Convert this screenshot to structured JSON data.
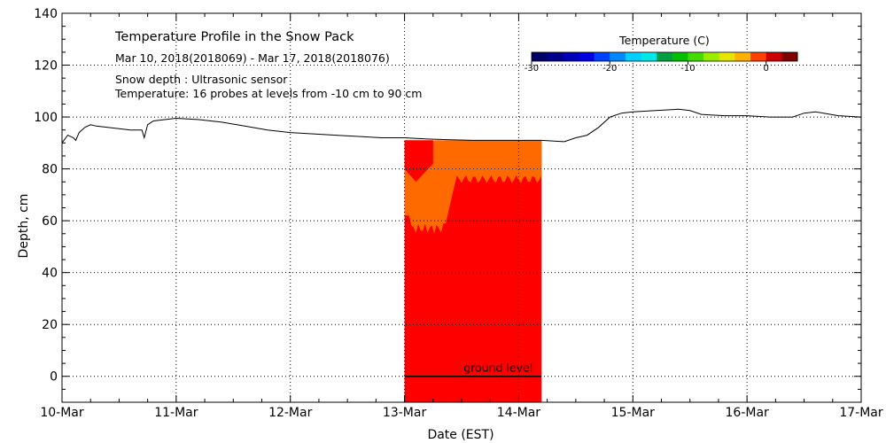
{
  "chart_data": {
    "type": "area",
    "title": "Temperature Profile in the Snow Pack",
    "subtitle": "Mar 10, 2018(2018069) - Mar 17, 2018(2018076)",
    "notes": [
      "Snow depth : Ultrasonic sensor",
      "Temperature: 16 probes at levels from -10 cm to 90 cm"
    ],
    "xlabel": "Date (EST)",
    "ylabel": "Depth, cm",
    "xlim": [
      0,
      7
    ],
    "ylim": [
      -10,
      140
    ],
    "x_ticks": [
      {
        "v": 0,
        "label": "10-Mar"
      },
      {
        "v": 1,
        "label": "11-Mar"
      },
      {
        "v": 2,
        "label": "12-Mar"
      },
      {
        "v": 3,
        "label": "13-Mar"
      },
      {
        "v": 4,
        "label": "14-Mar"
      },
      {
        "v": 5,
        "label": "15-Mar"
      },
      {
        "v": 6,
        "label": "16-Mar"
      },
      {
        "v": 7,
        "label": "17-Mar"
      }
    ],
    "y_ticks": [
      0,
      20,
      40,
      60,
      80,
      100,
      120,
      140
    ],
    "grid": true,
    "snow_depth_series": {
      "x": [
        0,
        0.05,
        0.1,
        0.12,
        0.15,
        0.2,
        0.25,
        0.3,
        0.4,
        0.5,
        0.6,
        0.7,
        0.72,
        0.75,
        0.8,
        0.9,
        1.0,
        1.2,
        1.4,
        1.6,
        1.8,
        2.0,
        2.2,
        2.4,
        2.6,
        2.8,
        3.0,
        3.2,
        3.4,
        3.6,
        3.8,
        4.0,
        4.2,
        4.4,
        4.5,
        4.6,
        4.7,
        4.8,
        4.9,
        5.0,
        5.2,
        5.4,
        5.5,
        5.6,
        5.8,
        6.0,
        6.2,
        6.4,
        6.5,
        6.6,
        6.8,
        7.0
      ],
      "y": [
        90,
        93,
        92,
        91,
        94,
        96,
        97,
        96.5,
        96,
        95.5,
        95,
        95,
        92,
        97,
        98.5,
        99,
        99.5,
        99,
        98,
        96.5,
        95,
        94,
        93.5,
        93,
        92.5,
        92,
        92,
        91.5,
        91.2,
        91,
        91,
        91,
        91,
        90.5,
        92,
        93,
        96,
        100,
        101.5,
        102,
        102.5,
        103,
        102.5,
        101,
        100.5,
        100.5,
        100,
        100,
        101.5,
        102,
        100.5,
        100
      ]
    },
    "temperature_fill": {
      "x_start": 3.0,
      "x_end": 4.2,
      "depth_bottom": -10,
      "top_depth": 91,
      "warm_upper_level": 76,
      "warm_lower_level": 57,
      "warm_color": "#ff0000",
      "upper_color": "#ff6a00"
    },
    "ground_level": {
      "label": "ground level",
      "depth": 0
    },
    "colorbar": {
      "title": "Temperature (C)",
      "tick_labels": [
        {
          "v": -30,
          "label": "-30"
        },
        {
          "v": -20,
          "label": "-20"
        },
        {
          "v": -10,
          "label": "-10"
        },
        {
          "v": 0,
          "label": "0"
        }
      ],
      "range": [
        -30,
        4
      ],
      "colors": [
        "#000066",
        "#00008b",
        "#0000b8",
        "#0000e0",
        "#0040ff",
        "#0088ff",
        "#00cfff",
        "#00e8e8",
        "#00a040",
        "#00c000",
        "#44dd00",
        "#99ee00",
        "#e6e600",
        "#ffb000",
        "#ff4000",
        "#cc0000",
        "#800000"
      ]
    }
  }
}
